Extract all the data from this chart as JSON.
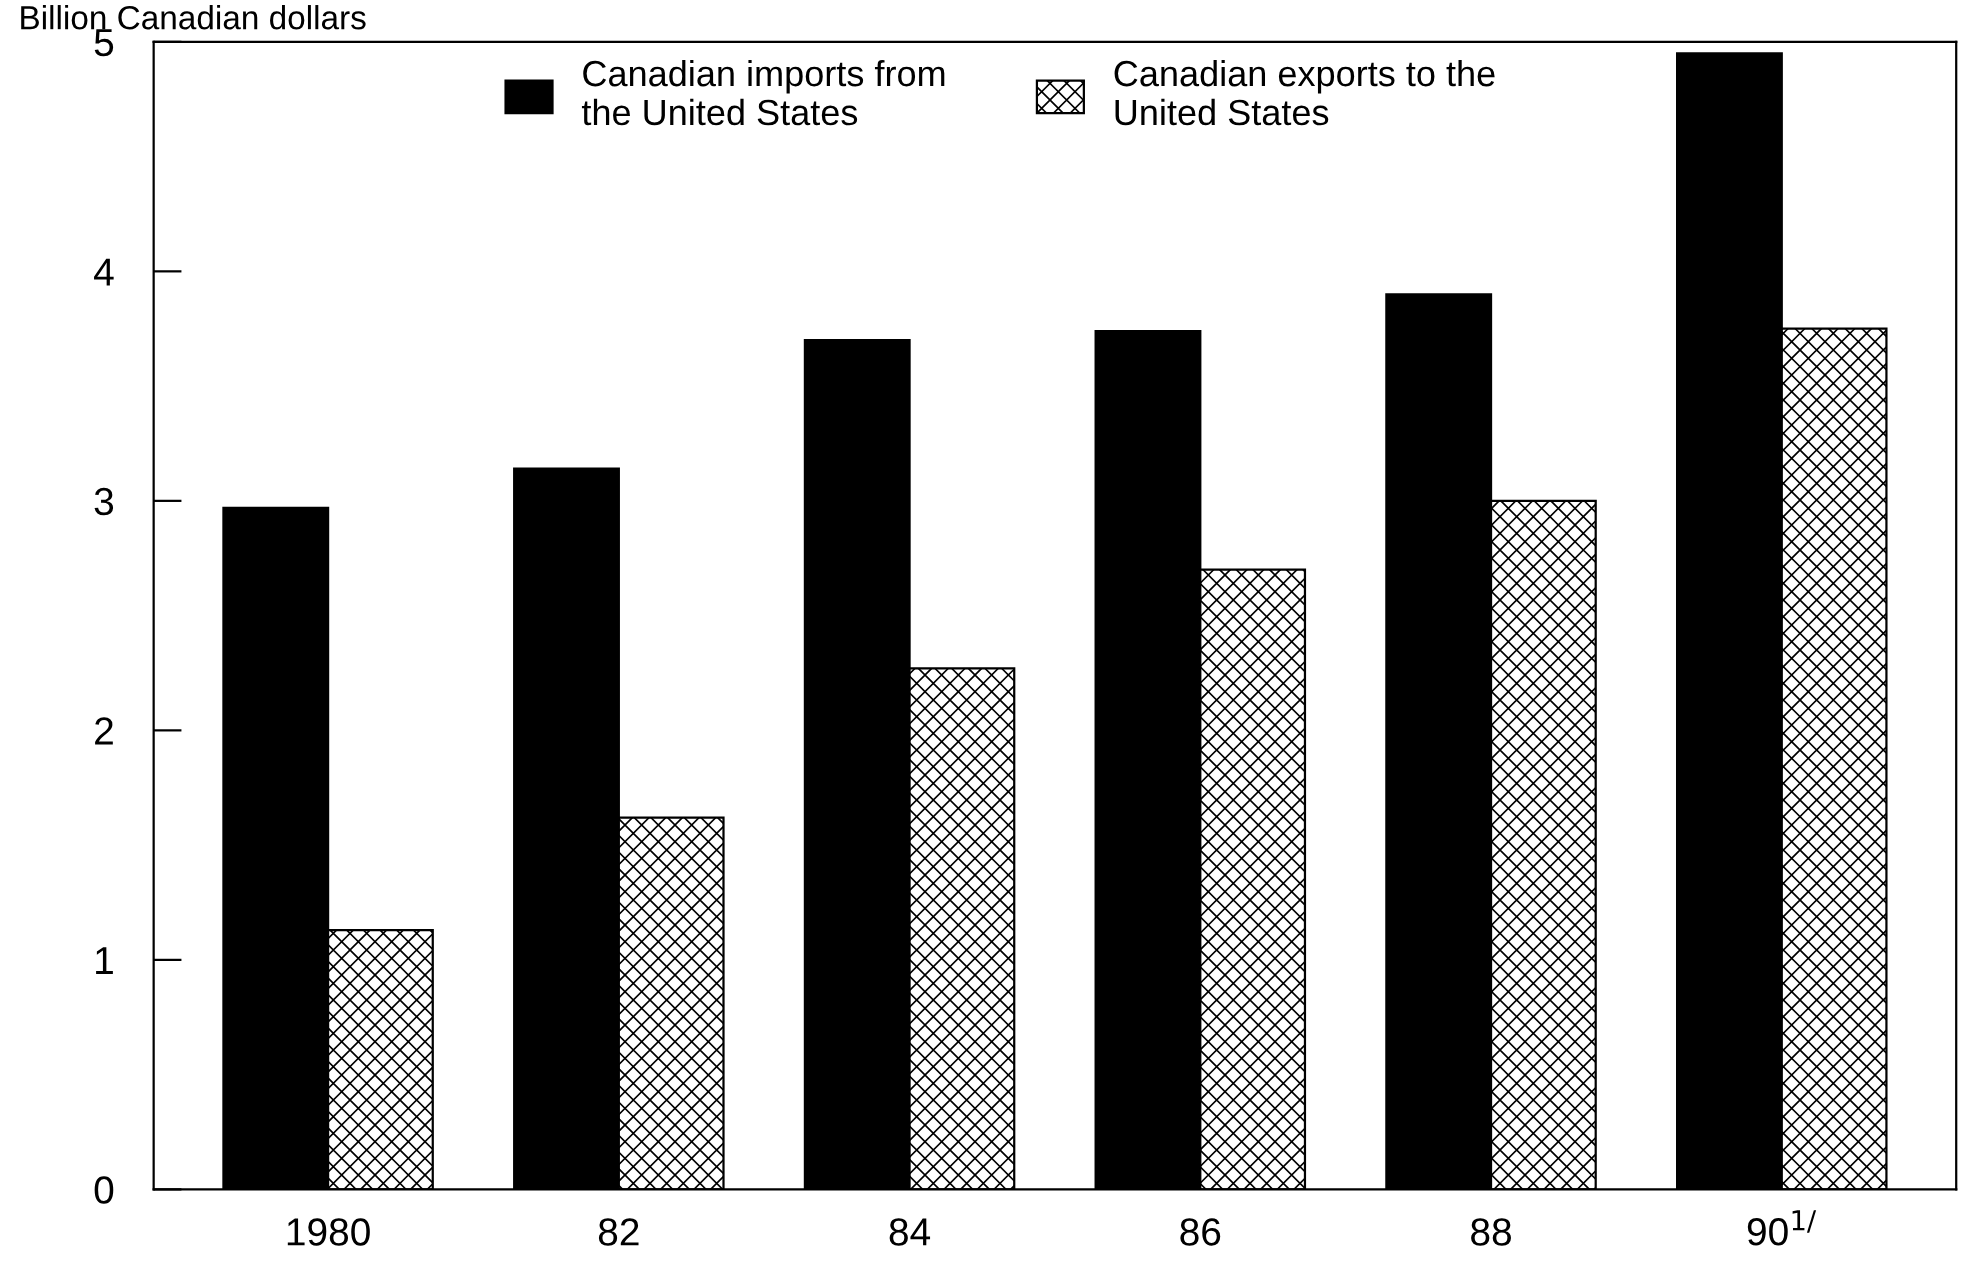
{
  "chart_data": {
    "type": "bar",
    "ylabel": "Billion Canadian dollars",
    "categories": [
      "1980",
      "82",
      "84",
      "86",
      "88",
      "90$^{1/}$"
    ],
    "series": [
      {
        "name": "Canadian imports from\nthe United States",
        "color": "#000000",
        "values": [
          2.97,
          3.14,
          3.7,
          3.74,
          3.9,
          4.95
        ]
      },
      {
        "name": "Canadian exports to the\nUnited States",
        "color": "#000000",
        "values": [
          1.13,
          1.62,
          2.27,
          2.7,
          3.0,
          3.75
        ]
      }
    ],
    "ylim": [
      0,
      5
    ],
    "yticks": [
      0,
      1,
      2,
      3,
      4,
      5
    ],
    "grid": false,
    "legend": "top"
  }
}
